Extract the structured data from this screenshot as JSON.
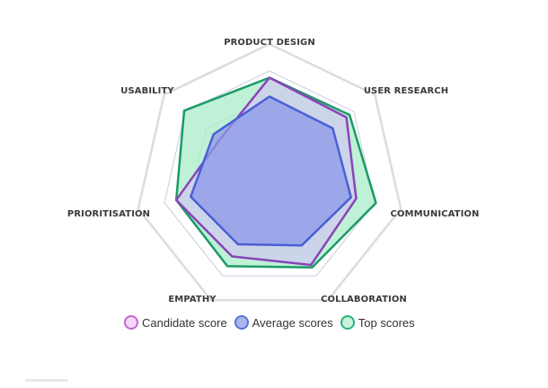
{
  "chart_data": {
    "type": "radar",
    "axes": [
      "PRODUCT DESIGN",
      "USER RESEARCH",
      "COMMUNICATION",
      "COLLABORATION",
      "EMPATHY",
      "PRIORITISATION",
      "USABILITY"
    ],
    "scale_max": 5,
    "grid_levels": 5,
    "series": [
      {
        "name": "Top scores",
        "values": [
          3.75,
          3.8,
          4.05,
          3.65,
          3.6,
          3.55,
          4.05
        ],
        "fill": "#a8ecc8",
        "stroke": "#1e9a68",
        "fill_opacity": 0.75
      },
      {
        "name": "Candidate score",
        "values": [
          3.75,
          3.65,
          3.3,
          3.55,
          3.2,
          3.55,
          2.35
        ],
        "fill": "#d2c8f2",
        "stroke": "#8a44b8",
        "fill_opacity": 0.7
      },
      {
        "name": "Average scores",
        "values": [
          3.05,
          3.0,
          3.1,
          2.75,
          2.7,
          3.0,
          2.65
        ],
        "fill": "#8c98e8",
        "stroke": "#4a5fd6",
        "fill_opacity": 0.75
      }
    ],
    "legend_position": "bottom",
    "legend": [
      {
        "label": "Candidate score",
        "fill": "#f6d8f6",
        "stroke": "#c266cf"
      },
      {
        "label": "Average scores",
        "fill": "#a8b8ee",
        "stroke": "#5a72d8"
      },
      {
        "label": "Top scores",
        "fill": "#c8f2dc",
        "stroke": "#2bb37a"
      }
    ],
    "grid_color_outer": "#dcdcdc",
    "grid_color_inner": "#c9cde0"
  }
}
